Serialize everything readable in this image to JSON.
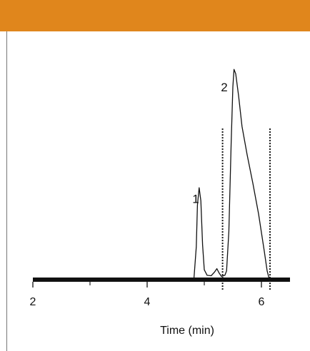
{
  "header": {
    "color": "#e0861c"
  },
  "chart_data": {
    "type": "line",
    "xlabel": "Time (min)",
    "ylabel": "",
    "title": "",
    "xlim": [
      2,
      6.5
    ],
    "ylim": [
      0,
      1
    ],
    "xticks": [
      {
        "value": 2,
        "label": "2"
      },
      {
        "value": 4,
        "label": "4"
      },
      {
        "value": 6,
        "label": "6"
      }
    ],
    "x_minor_ticks": [
      3,
      5
    ],
    "grid": false,
    "series": [
      {
        "color": "#111111",
        "points": [
          [
            2.0,
            0
          ],
          [
            3.0,
            0
          ],
          [
            3.75,
            0
          ],
          [
            3.751,
            0.004
          ],
          [
            3.76,
            0
          ],
          [
            4.8,
            0
          ],
          [
            4.82,
            0.008
          ],
          [
            4.86,
            0.15
          ],
          [
            4.88,
            0.34
          ],
          [
            4.91,
            0.42
          ],
          [
            4.94,
            0.36
          ],
          [
            4.97,
            0.16
          ],
          [
            5.0,
            0.045
          ],
          [
            5.05,
            0.02
          ],
          [
            5.12,
            0.018
          ],
          [
            5.18,
            0.035
          ],
          [
            5.22,
            0.05
          ],
          [
            5.26,
            0.03
          ],
          [
            5.3,
            0.015
          ],
          [
            5.36,
            0.02
          ],
          [
            5.39,
            0.04
          ],
          [
            5.43,
            0.22
          ],
          [
            5.47,
            0.62
          ],
          [
            5.5,
            0.88
          ],
          [
            5.52,
            0.96
          ],
          [
            5.55,
            0.94
          ],
          [
            5.6,
            0.84
          ],
          [
            5.66,
            0.7
          ],
          [
            5.75,
            0.57
          ],
          [
            5.85,
            0.44
          ],
          [
            5.95,
            0.3
          ],
          [
            6.05,
            0.13
          ],
          [
            6.1,
            0.04
          ],
          [
            6.13,
            0.01
          ],
          [
            6.2,
            0
          ],
          [
            6.5,
            0
          ]
        ]
      }
    ],
    "peak_labels": [
      {
        "text": "1",
        "x": 4.85,
        "y": 0.37
      },
      {
        "text": "2",
        "x": 5.35,
        "y": 0.88
      }
    ],
    "vertical_markers": [
      {
        "x": 5.32,
        "y_top": 0.69
      },
      {
        "x": 6.15,
        "y_top": 0.69
      }
    ]
  }
}
